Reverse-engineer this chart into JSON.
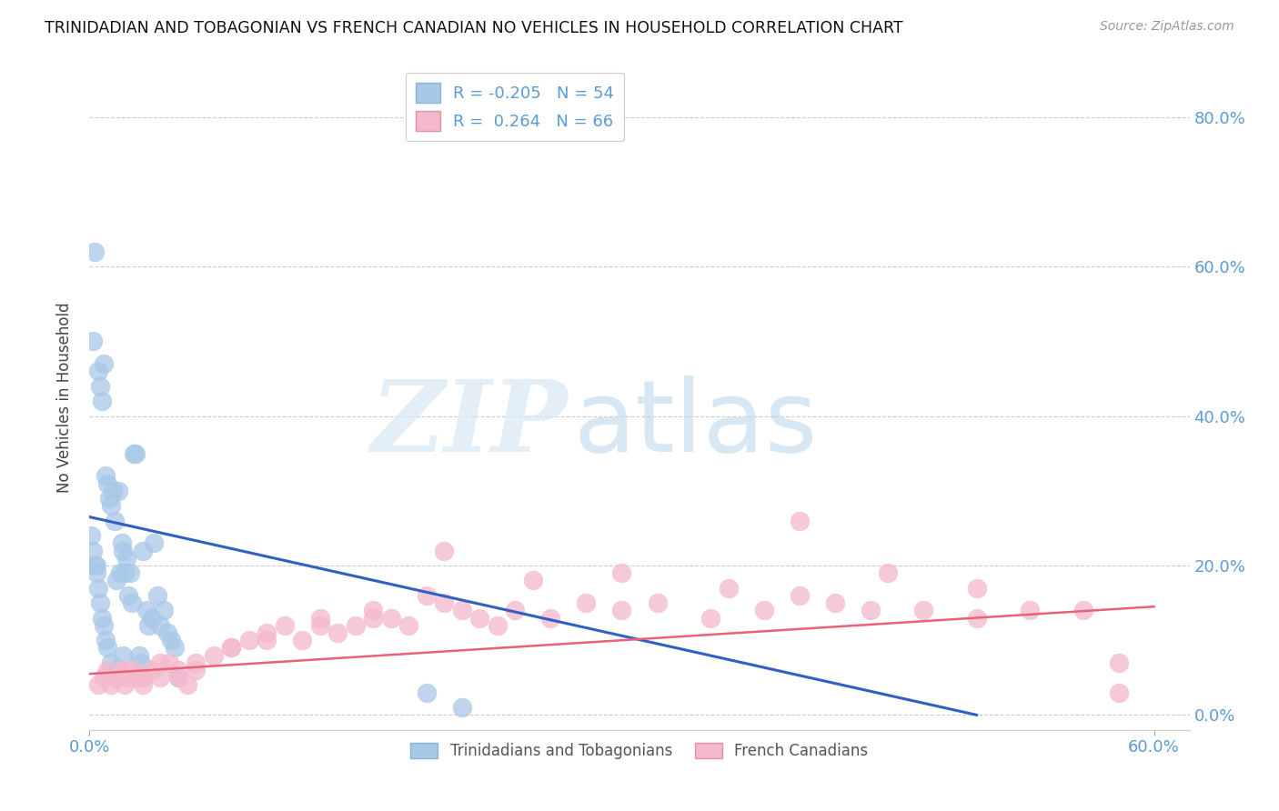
{
  "title": "TRINIDADIAN AND TOBAGONIAN VS FRENCH CANADIAN NO VEHICLES IN HOUSEHOLD CORRELATION CHART",
  "source": "Source: ZipAtlas.com",
  "ylabel": "No Vehicles in Household",
  "xlim": [
    0.0,
    0.62
  ],
  "ylim": [
    -0.02,
    0.87
  ],
  "x_ticks": [
    0.0,
    0.6
  ],
  "x_tick_labels": [
    "0.0%",
    "60.0%"
  ],
  "y_ticks": [
    0.0,
    0.2,
    0.4,
    0.6,
    0.8
  ],
  "y_tick_labels_right": [
    "0.0%",
    "20.0%",
    "40.0%",
    "60.0%",
    "80.0%"
  ],
  "blue_R": -0.205,
  "blue_N": 54,
  "pink_R": 0.264,
  "pink_N": 66,
  "blue_color": "#a8c8e8",
  "pink_color": "#f4b8cc",
  "blue_line_color": "#3060c0",
  "pink_line_color": "#e8607a",
  "legend_label_blue": "Trinidadians and Tobagonians",
  "legend_label_pink": "French Canadians",
  "watermark_zip": "ZIP",
  "watermark_atlas": "atlas",
  "tick_color": "#5b9bd5",
  "grid_color": "#cccccc",
  "title_fontsize": 12.5,
  "blue_scatter_x": [
    0.002,
    0.003,
    0.004,
    0.005,
    0.006,
    0.007,
    0.008,
    0.009,
    0.01,
    0.011,
    0.012,
    0.013,
    0.014,
    0.015,
    0.016,
    0.017,
    0.018,
    0.019,
    0.02,
    0.021,
    0.022,
    0.023,
    0.024,
    0.025,
    0.026,
    0.028,
    0.029,
    0.03,
    0.032,
    0.033,
    0.035,
    0.036,
    0.038,
    0.04,
    0.042,
    0.044,
    0.046,
    0.048,
    0.05,
    0.001,
    0.002,
    0.003,
    0.004,
    0.005,
    0.006,
    0.007,
    0.008,
    0.009,
    0.01,
    0.012,
    0.015,
    0.019,
    0.19,
    0.21
  ],
  "blue_scatter_y": [
    0.5,
    0.62,
    0.2,
    0.46,
    0.44,
    0.42,
    0.47,
    0.32,
    0.31,
    0.29,
    0.28,
    0.3,
    0.26,
    0.18,
    0.3,
    0.19,
    0.23,
    0.22,
    0.19,
    0.21,
    0.16,
    0.19,
    0.15,
    0.35,
    0.35,
    0.08,
    0.07,
    0.22,
    0.14,
    0.12,
    0.13,
    0.23,
    0.16,
    0.12,
    0.14,
    0.11,
    0.1,
    0.09,
    0.05,
    0.24,
    0.22,
    0.2,
    0.19,
    0.17,
    0.15,
    0.13,
    0.12,
    0.1,
    0.09,
    0.07,
    0.06,
    0.08,
    0.03,
    0.01
  ],
  "pink_scatter_x": [
    0.005,
    0.008,
    0.01,
    0.012,
    0.015,
    0.018,
    0.02,
    0.022,
    0.025,
    0.028,
    0.03,
    0.035,
    0.04,
    0.045,
    0.05,
    0.055,
    0.06,
    0.07,
    0.08,
    0.09,
    0.1,
    0.11,
    0.12,
    0.13,
    0.14,
    0.15,
    0.16,
    0.17,
    0.18,
    0.19,
    0.2,
    0.21,
    0.22,
    0.23,
    0.24,
    0.26,
    0.28,
    0.3,
    0.32,
    0.35,
    0.38,
    0.4,
    0.42,
    0.44,
    0.47,
    0.5,
    0.53,
    0.56,
    0.58,
    0.02,
    0.03,
    0.04,
    0.05,
    0.06,
    0.08,
    0.1,
    0.13,
    0.16,
    0.2,
    0.25,
    0.3,
    0.36,
    0.4,
    0.45,
    0.5,
    0.58
  ],
  "pink_scatter_y": [
    0.04,
    0.05,
    0.06,
    0.04,
    0.05,
    0.06,
    0.04,
    0.05,
    0.06,
    0.05,
    0.04,
    0.06,
    0.05,
    0.07,
    0.05,
    0.04,
    0.06,
    0.08,
    0.09,
    0.1,
    0.11,
    0.12,
    0.1,
    0.13,
    0.11,
    0.12,
    0.14,
    0.13,
    0.12,
    0.16,
    0.15,
    0.14,
    0.13,
    0.12,
    0.14,
    0.13,
    0.15,
    0.14,
    0.15,
    0.13,
    0.14,
    0.16,
    0.15,
    0.14,
    0.14,
    0.13,
    0.14,
    0.14,
    0.03,
    0.06,
    0.05,
    0.07,
    0.06,
    0.07,
    0.09,
    0.1,
    0.12,
    0.13,
    0.22,
    0.18,
    0.19,
    0.17,
    0.26,
    0.19,
    0.17,
    0.07
  ],
  "blue_trendline_x": [
    0.0,
    0.5
  ],
  "blue_trendline_y": [
    0.265,
    0.0
  ],
  "pink_trendline_x": [
    0.0,
    0.6
  ],
  "pink_trendline_y": [
    0.055,
    0.145
  ]
}
